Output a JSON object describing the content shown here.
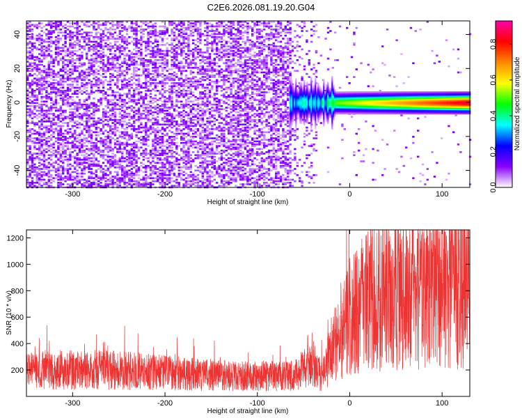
{
  "figure": {
    "title": "C2E6.2026.081.19.20.G04"
  },
  "chart_data": [
    {
      "type": "heatmap",
      "xlabel": "Height of straight line (km)",
      "ylabel": "Frequency (Hz)",
      "xlim": [
        -350,
        130
      ],
      "ylim": [
        -50,
        48
      ],
      "xticks": [
        -300,
        -200,
        -100,
        0,
        100
      ],
      "xtick_labels": [
        "-300",
        "-200",
        "-100",
        "0",
        "100"
      ],
      "yticks": [
        -40,
        -20,
        0,
        20,
        40
      ],
      "ytick_labels": [
        "-40",
        "-20",
        "0",
        "20",
        "40"
      ],
      "colorbar": {
        "label": "Normalized spectral amplitude",
        "range": [
          0,
          0.93
        ],
        "ticks": [
          0,
          0.2,
          0.4,
          0.6,
          0.8
        ],
        "tick_labels": [
          "0.0",
          "0.2",
          "0.4",
          "0.6",
          "0.8"
        ],
        "colormap": [
          "#ffffff",
          "#8800ff",
          "#0000ff",
          "#00ffff",
          "#00ff00",
          "#ffff00",
          "#ff8800",
          "#ff0000",
          "#ff00aa"
        ]
      },
      "regions": [
        {
          "description": "noise",
          "x_range": [
            -350,
            -65
          ],
          "freq_range": [
            -50,
            48
          ],
          "amplitude": 0.05
        },
        {
          "description": "signal",
          "x_range": [
            -65,
            130
          ],
          "center_freq": 0,
          "bandwidth": 3,
          "amplitude": 0.9
        }
      ],
      "grid": false
    },
    {
      "type": "line",
      "xlabel": "Height of straight line (km)",
      "ylabel": "SNR (10 * v/v)",
      "xlim": [
        -350,
        130
      ],
      "ylim": [
        0,
        1260
      ],
      "xticks": [
        -300,
        -200,
        -100,
        0,
        100
      ],
      "xtick_labels": [
        "-300",
        "-200",
        "-100",
        "0",
        "100"
      ],
      "yticks": [
        200,
        400,
        600,
        800,
        1000,
        1200
      ],
      "ytick_labels": [
        "200",
        "400",
        "600",
        "800",
        "1000",
        "1200"
      ],
      "series_color": "#ee3333",
      "trend": {
        "x": [
          -350,
          -300,
          -250,
          -200,
          -150,
          -100,
          -60,
          -40,
          -30,
          -20,
          -10,
          0,
          10,
          30,
          50,
          80,
          110,
          130
        ],
        "y": [
          200,
          200,
          200,
          180,
          160,
          150,
          160,
          250,
          150,
          350,
          500,
          600,
          680,
          740,
          760,
          780,
          810,
          830
        ]
      },
      "grid": false
    }
  ]
}
